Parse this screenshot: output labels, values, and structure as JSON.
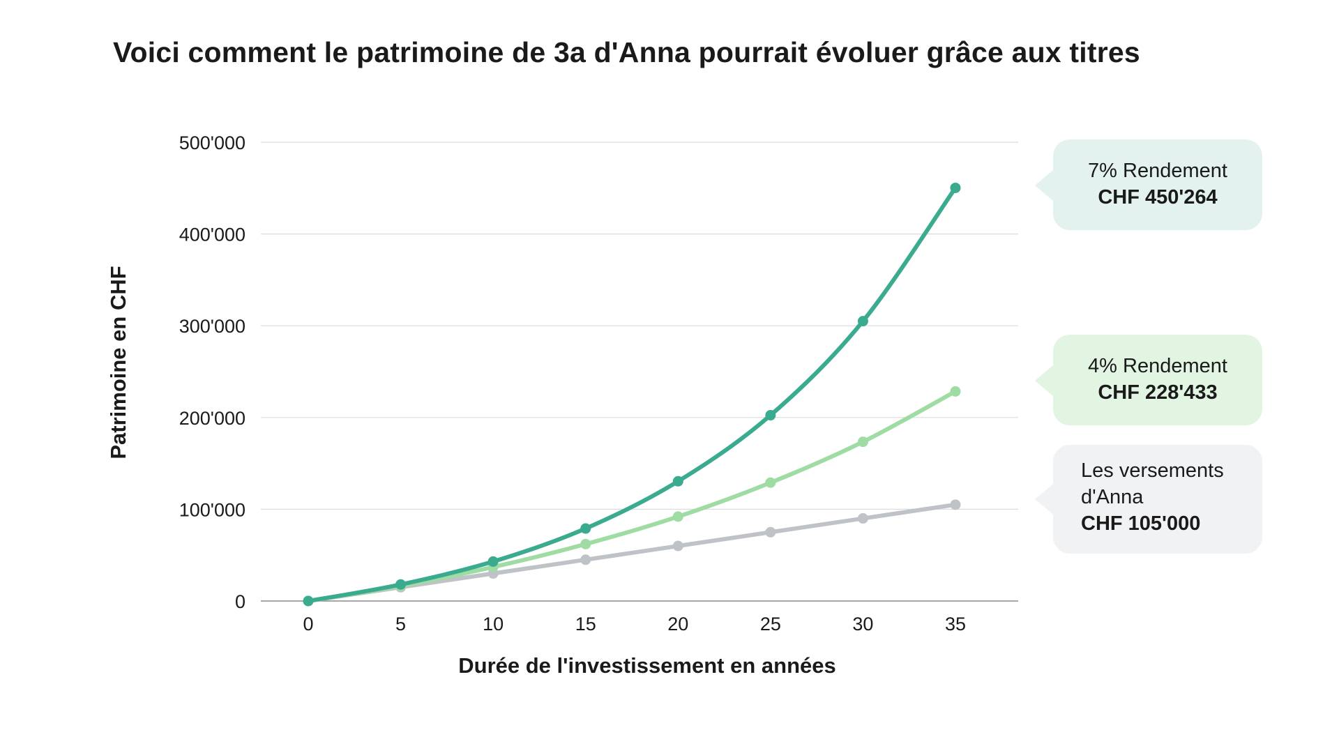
{
  "title": "Voici comment le patrimoine de 3a d'Anna pourrait évoluer grâce aux titres",
  "chart_data": {
    "type": "line",
    "xlabel": "Durée de l'investissement en années",
    "ylabel": "Patrimoine en CHF",
    "x": [
      0,
      5,
      10,
      15,
      20,
      25,
      30,
      35
    ],
    "x_tick_labels": [
      "0",
      "5",
      "10",
      "15",
      "20",
      "25",
      "30",
      "35"
    ],
    "ylim": [
      0,
      500000
    ],
    "y_ticks": [
      0,
      100000,
      200000,
      300000,
      400000,
      500000
    ],
    "y_tick_labels": [
      "0",
      "100'000",
      "200'000",
      "300'000",
      "400'000",
      "500'000"
    ],
    "grid": "horizontal",
    "series": [
      {
        "color": "#bfc2c6",
        "values": [
          0,
          15000,
          30000,
          45000,
          60000,
          75000,
          90000,
          105000
        ]
      },
      {
        "color": "#9fdca3",
        "values": [
          0,
          16500,
          37000,
          62000,
          92000,
          129000,
          173500,
          228433
        ]
      },
      {
        "color": "#3aab8e",
        "values": [
          0,
          18000,
          43000,
          79000,
          130500,
          202500,
          305000,
          450264
        ]
      }
    ]
  },
  "callouts": {
    "rate7": {
      "label": "7% Rendement",
      "amount": "CHF 450'264"
    },
    "rate4": {
      "label": "4% Rendement",
      "amount": "CHF 228'433"
    },
    "payments": {
      "label_line1": "Les versements",
      "label_line2": "d'Anna",
      "amount": "CHF 105'000"
    }
  }
}
